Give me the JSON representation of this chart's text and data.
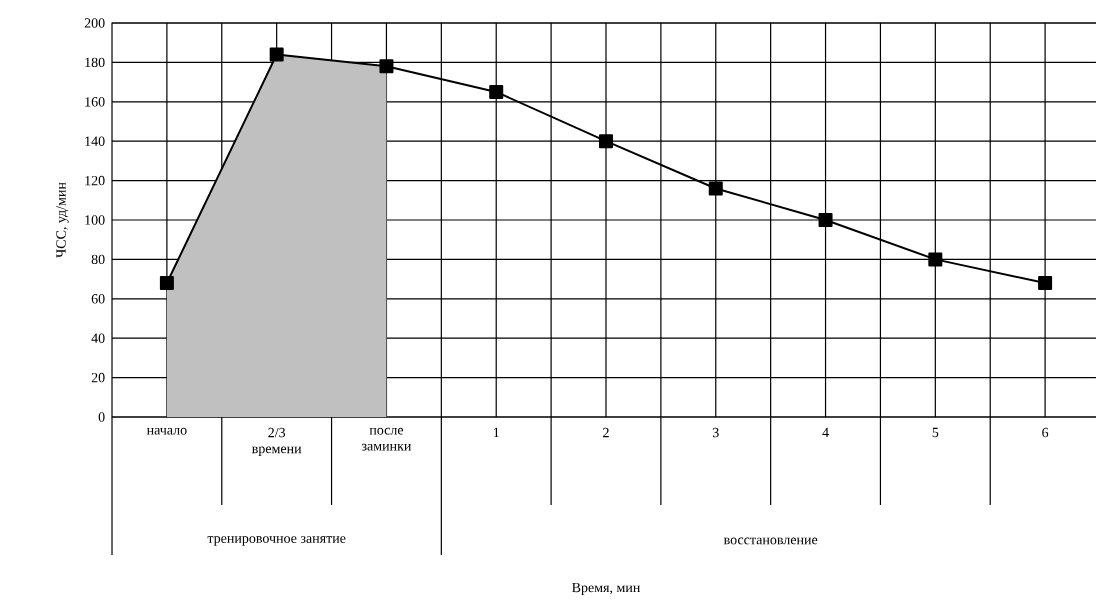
{
  "chart_data": {
    "type": "area",
    "ylabel": "ЧСС, уд/мин",
    "categories": [
      "начало",
      "2/3 времени",
      "после заминки",
      "1",
      "2",
      "3",
      "4",
      "5",
      "6"
    ],
    "series": [
      {
        "color": "#c0c0c0",
        "values": [
          68,
          184,
          178,
          null,
          null,
          null,
          null,
          null,
          null
        ]
      },
      {
        "type": "line",
        "color": "#000000",
        "marker": "square",
        "line_style": "solid",
        "values": [
          68,
          184,
          178,
          165,
          140,
          116,
          100,
          80,
          68
        ]
      }
    ],
    "annotations": [
      "тренировочное занятие",
      "восстановление",
      "Время, мин"
    ],
    "ylim": [
      0,
      200
    ],
    "yticks": [
      0,
      20,
      40,
      60,
      80,
      100,
      120,
      140,
      160,
      180,
      200
    ],
    "grid": true
  }
}
